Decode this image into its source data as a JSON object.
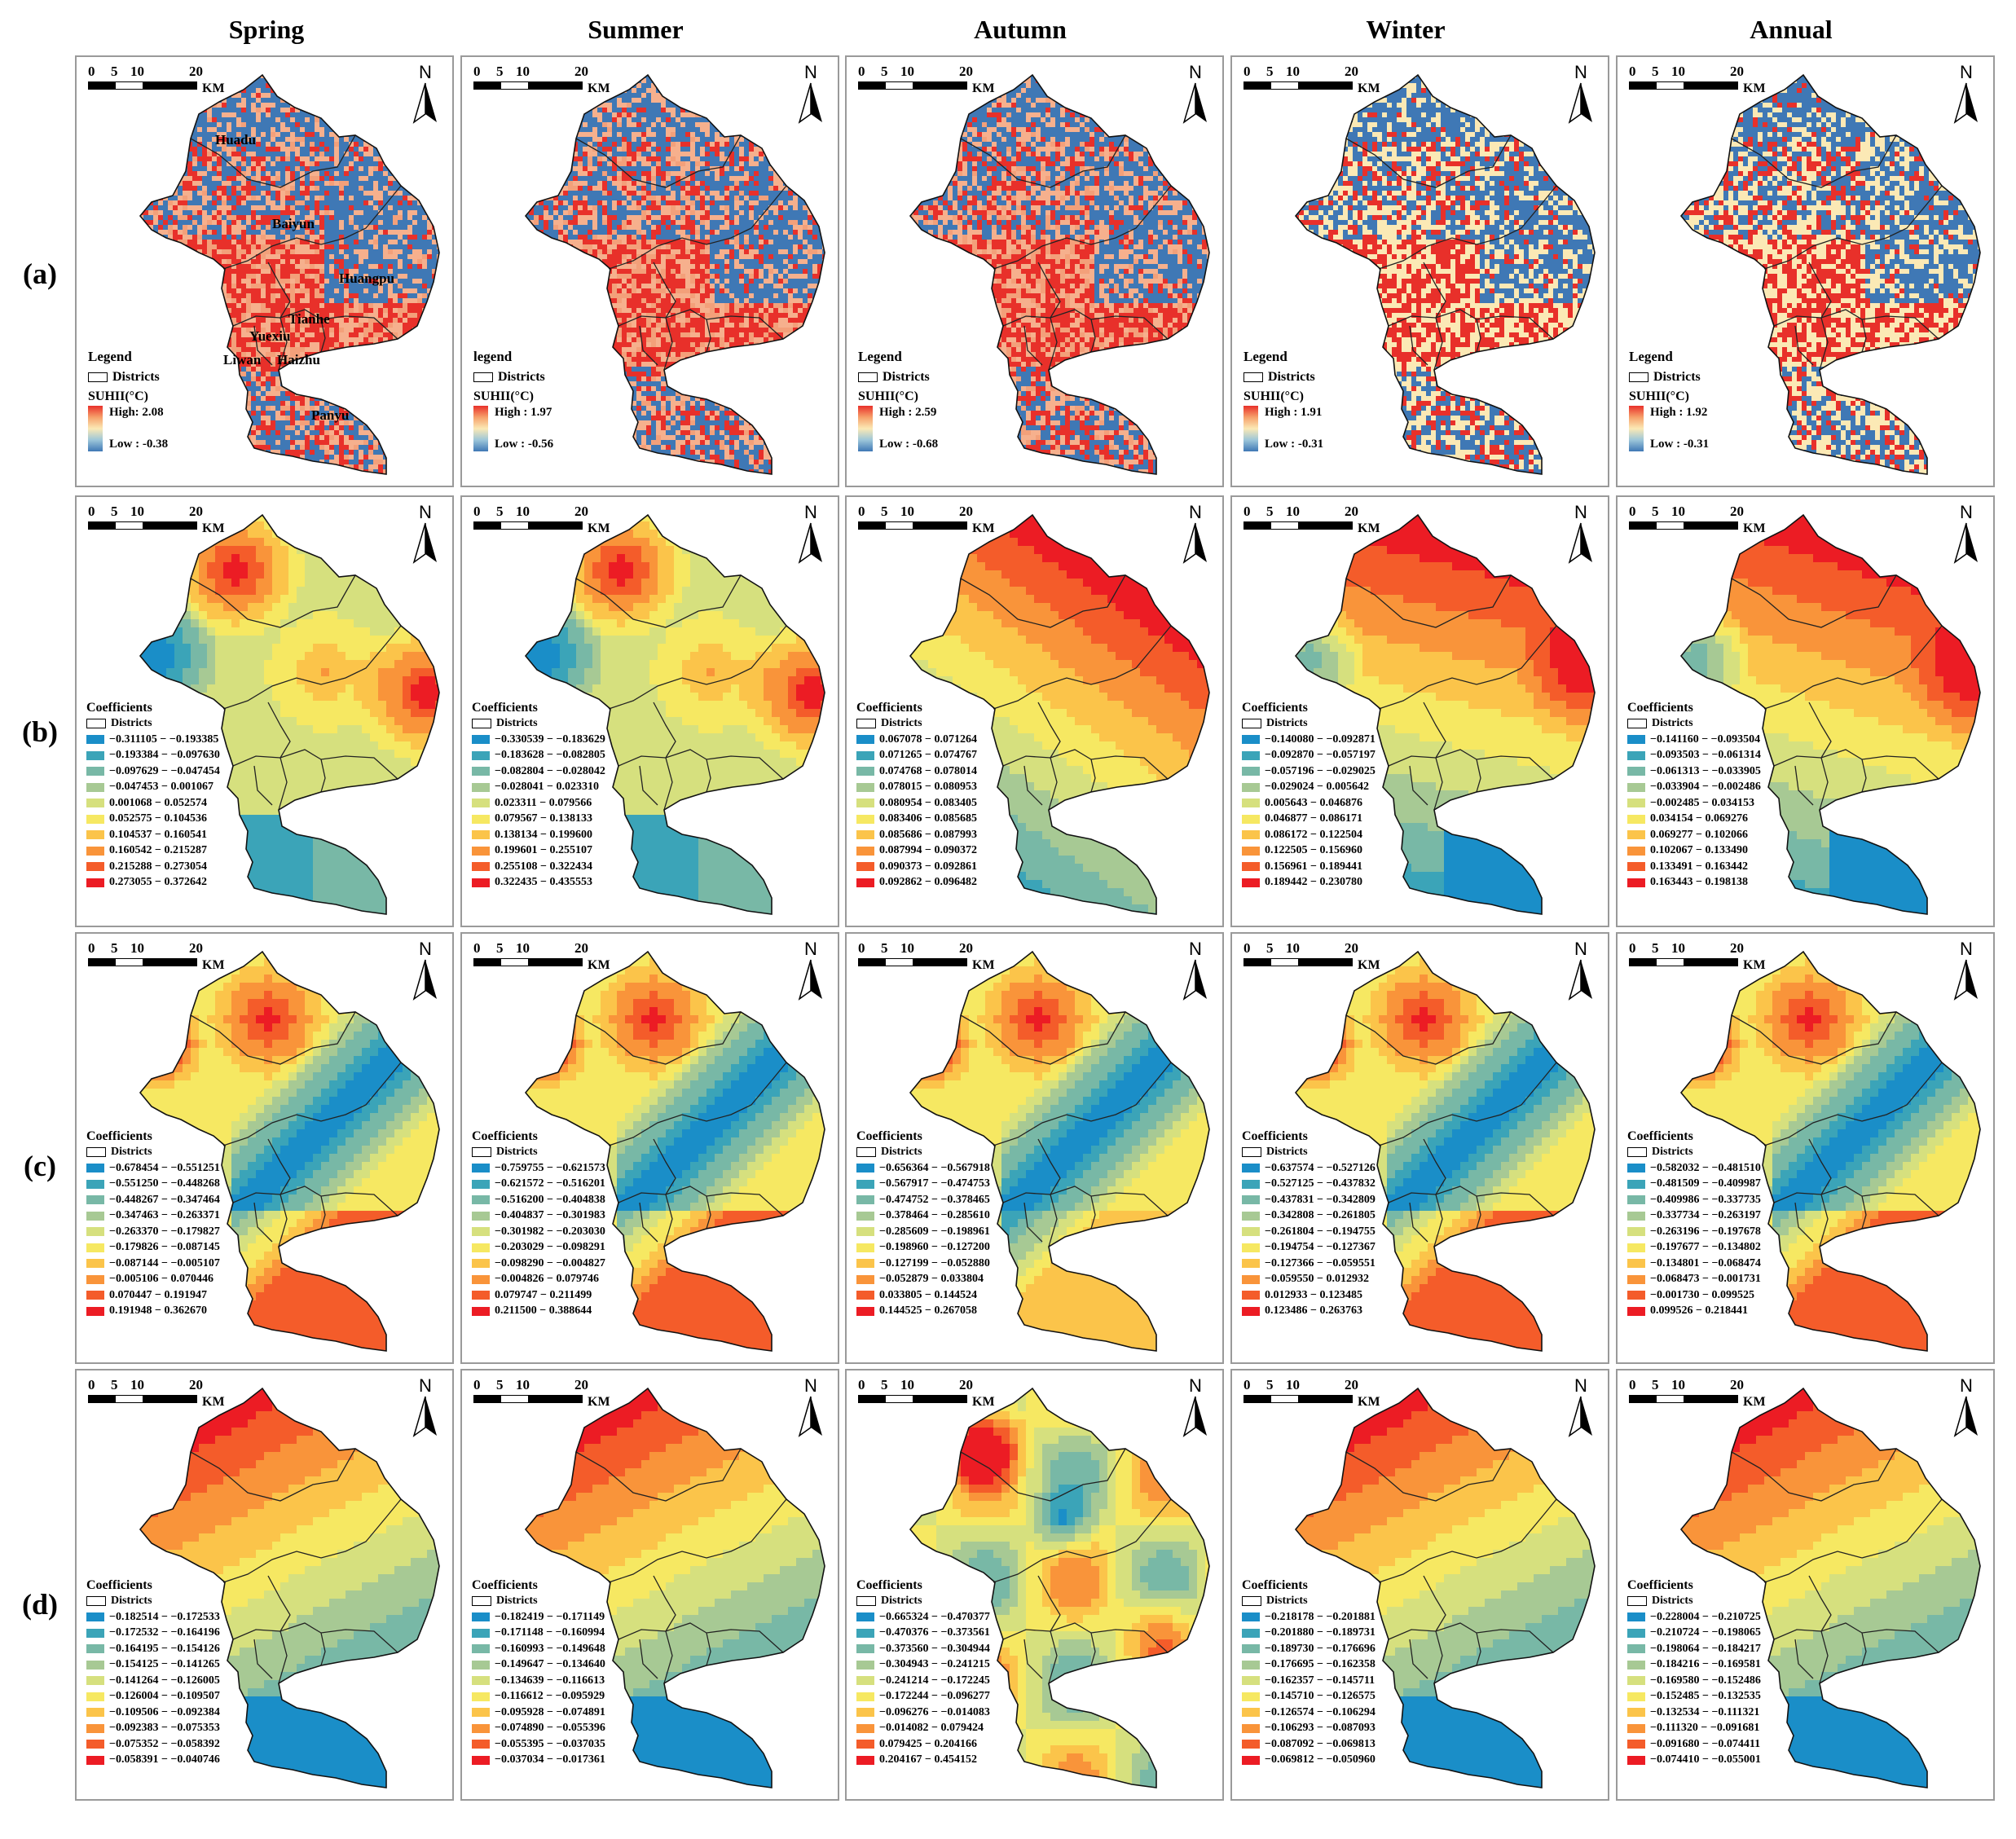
{
  "columns": [
    "Spring",
    "Summer",
    "Autumn",
    "Winter",
    "Annual"
  ],
  "row_labels": [
    "(a)",
    "(b)",
    "(c)",
    "(d)"
  ],
  "scale": {
    "ticks": [
      "0",
      "5",
      "10",
      "20"
    ],
    "unit": "KM"
  },
  "north_label": "N",
  "district_names": [
    "Huadu",
    "Baiyun",
    "Huangpu",
    "Tianhe",
    "Yuexiu",
    "Liwan",
    "Haizhu",
    "Panyu"
  ],
  "colors": {
    "coef_palette": [
      "#1a8ec8",
      "#3ba4b8",
      "#78b8a6",
      "#a7c994",
      "#d6e07e",
      "#f6e862",
      "#fbc44a",
      "#f9943a",
      "#f45c2a",
      "#ec1c24"
    ],
    "suhii_high": "#e8302a",
    "suhii_mid": "#fbe9b5",
    "suhii_low": "#3f78b5"
  },
  "row_a": [
    {
      "legend_title": "Legend",
      "districts_label": "Districts",
      "ramp_title": "SUHII(°C)",
      "high": "High: 2.08",
      "low": "Low : -0.38"
    },
    {
      "legend_title": "legend",
      "districts_label": "Districts",
      "ramp_title": "SUHII(°C)",
      "high": "High : 1.97",
      "low": "Low : -0.56"
    },
    {
      "legend_title": "Legend",
      "districts_label": "Districts",
      "ramp_title": "SUHII(°C)",
      "high": "High : 2.59",
      "low": "Low : -0.68"
    },
    {
      "legend_title": "Legend",
      "districts_label": "Districts",
      "ramp_title": "SUHII(°C)",
      "high": "High : 1.91",
      "low": "Low : -0.31"
    },
    {
      "legend_title": "Legend",
      "districts_label": "Districts",
      "ramp_title": "SUHII(°C)",
      "high": "High : 1.92",
      "low": "Low : -0.31"
    }
  ],
  "coef_title": "Coefficients",
  "districts_label": "Districts",
  "row_b": [
    [
      "−0.311105 − −0.193385",
      "−0.193384 − −0.097630",
      "−0.097629 − −0.047454",
      "−0.047453 − 0.001067",
      "0.001068 − 0.052574",
      "0.052575 − 0.104536",
      "0.104537 − 0.160541",
      "0.160542 − 0.215287",
      "0.215288 − 0.273054",
      "0.273055 − 0.372642"
    ],
    [
      "−0.330539 − −0.183629",
      "−0.183628 − −0.082805",
      "−0.082804 − −0.028042",
      "−0.028041 − 0.023310",
      "0.023311 − 0.079566",
      "0.079567 − 0.138133",
      "0.138134 − 0.199600",
      "0.199601 − 0.255107",
      "0.255108 − 0.322434",
      "0.322435 − 0.435553"
    ],
    [
      "0.067078 − 0.071264",
      "0.071265 − 0.074767",
      "0.074768 − 0.078014",
      "0.078015 − 0.080953",
      "0.080954 − 0.083405",
      "0.083406 − 0.085685",
      "0.085686 − 0.087993",
      "0.087994 − 0.090372",
      "0.090373 − 0.092861",
      "0.092862 − 0.096482"
    ],
    [
      "−0.140080 − −0.092871",
      "−0.092870 − −0.057197",
      "−0.057196 − −0.029025",
      "−0.029024 − 0.005642",
      "0.005643 − 0.046876",
      "0.046877 − 0.086171",
      "0.086172 − 0.122504",
      "0.122505 − 0.156960",
      "0.156961 − 0.189441",
      "0.189442 − 0.230780"
    ],
    [
      "−0.141160 − −0.093504",
      "−0.093503 − −0.061314",
      "−0.061313 − −0.033905",
      "−0.033904 − −0.002486",
      "−0.002485 − 0.034153",
      "0.034154 − 0.069276",
      "0.069277 − 0.102066",
      "0.102067 − 0.133490",
      "0.133491 − 0.163442",
      "0.163443 − 0.198138"
    ]
  ],
  "row_c": [
    [
      "−0.678454 − −0.551251",
      "−0.551250 − −0.448268",
      "−0.448267 − −0.347464",
      "−0.347463 − −0.263371",
      "−0.263370 − −0.179827",
      "−0.179826 − −0.087145",
      "−0.087144 − −0.005107",
      "−0.005106 − 0.070446",
      "0.070447 − 0.191947",
      "0.191948 − 0.362670"
    ],
    [
      "−0.759755 − −0.621573",
      "−0.621572 − −0.516201",
      "−0.516200 − −0.404838",
      "−0.404837 − −0.301983",
      "−0.301982 − −0.203030",
      "−0.203029 − −0.098291",
      "−0.098290 − −0.004827",
      "−0.004826 − 0.079746",
      "0.079747 − 0.211499",
      "0.211500 − 0.388644"
    ],
    [
      "−0.656364 − −0.567918",
      "−0.567917 − −0.474753",
      "−0.474752 − −0.378465",
      "−0.378464 − −0.285610",
      "−0.285609 − −0.198961",
      "−0.198960 − −0.127200",
      "−0.127199 − −0.052880",
      "−0.052879 − 0.033804",
      "0.033805 − 0.144524",
      "0.144525 − 0.267058"
    ],
    [
      "−0.637574 − −0.527126",
      "−0.527125 − −0.437832",
      "−0.437831 − −0.342809",
      "−0.342808 − −0.261805",
      "−0.261804 − −0.194755",
      "−0.194754 − −0.127367",
      "−0.127366 − −0.059551",
      "−0.059550 − 0.012932",
      "0.012933 − 0.123485",
      "0.123486 − 0.263763"
    ],
    [
      "−0.582032 − −0.481510",
      "−0.481509 − −0.409987",
      "−0.409986 − −0.337735",
      "−0.337734 − −0.263197",
      "−0.263196 − −0.197678",
      "−0.197677 − −0.134802",
      "−0.134801 − −0.068474",
      "−0.068473 − −0.001731",
      "−0.001730 − 0.099525",
      "0.099526 − 0.218441"
    ]
  ],
  "row_d": [
    [
      "−0.182514 − −0.172533",
      "−0.172532 − −0.164196",
      "−0.164195 − −0.154126",
      "−0.154125 − −0.141265",
      "−0.141264 − −0.126005",
      "−0.126004 − −0.109507",
      "−0.109506 − −0.092384",
      "−0.092383 − −0.075353",
      "−0.075352 − −0.058392",
      "−0.058391 − −0.040746"
    ],
    [
      "−0.182419 − −0.171149",
      "−0.171148 − −0.160994",
      "−0.160993 − −0.149648",
      "−0.149647 − −0.134640",
      "−0.134639 − −0.116613",
      "−0.116612 − −0.095929",
      "−0.095928 − −0.074891",
      "−0.074890 − −0.055396",
      "−0.055395 − −0.037035",
      "−0.037034 − −0.017361"
    ],
    [
      "−0.665324 − −0.470377",
      "−0.470376 − −0.373561",
      "−0.373560 − −0.304944",
      "−0.304943 − −0.241215",
      "−0.241214 − −0.172245",
      "−0.172244 − −0.096277",
      "−0.096276 − −0.014083",
      "−0.014082 − 0.079424",
      "0.079425 − 0.204166",
      "0.204167 − 0.454152"
    ],
    [
      "−0.218178 − −0.201881",
      "−0.201880 − −0.189731",
      "−0.189730 − −0.176696",
      "−0.176695 − −0.162358",
      "−0.162357 − −0.145711",
      "−0.145710 − −0.126575",
      "−0.126574 − −0.106294",
      "−0.106293 − −0.087093",
      "−0.087092 − −0.069813",
      "−0.069812 − −0.050960"
    ],
    [
      "−0.228004 − −0.210725",
      "−0.210724 − −0.198065",
      "−0.198064 − −0.184217",
      "−0.184216 − −0.169581",
      "−0.169580 − −0.152486",
      "−0.152485 − −0.132535",
      "−0.132534 − −0.111321",
      "−0.111320 − −0.091681",
      "−0.091680 − −0.074411",
      "−0.074410 − −0.055001"
    ]
  ]
}
